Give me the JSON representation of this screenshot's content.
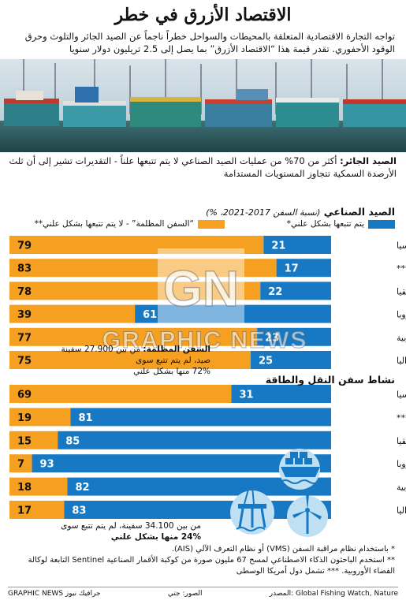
{
  "title": "الاقتصاد الأزرق في خطر",
  "subtitle": "تواجه التجارة الاقتصادية المتعلقة بالمحيطات والسواحل خطراً ناجماً عن الصيد الجائر والتلوث وحرق الوقود الأحفوري. تقدر قيمة هذا “الاقتصاد الأزرق” بما يصل إلى 2.5 تريليون دولار سنويا",
  "intro": {
    "lead": "الصيد الجائر:",
    "text": " أكثر من 70% من عمليات الصيد الصناعي لا يتم تتبعها علناً - التقديرات تشير إلى أن ثلث الأرصدة السمكية تتجاوز المستويات المستدامة"
  },
  "legend": {
    "blue": "يتم تتبعها بشكل علني*",
    "orange": "“السفن المظلمة” - لا يتم تتبعها بشكل علني**"
  },
  "colors": {
    "blue": "#1779c4",
    "orange": "#f5a021",
    "sea": "#bfe0f2",
    "icon": "#1779c4"
  },
  "chart_data": [
    {
      "type": "bar",
      "title": "الصيد الصناعي",
      "note": "(نسبة السفن 2017-2021، %)",
      "categories": [
        "آسيا",
        "أمريكا الشمالية***",
        "أفريقيا",
        "أوروبا",
        "أمريكا الجنوبية",
        "أستراليا"
      ],
      "series": [
        {
          "name": "يتم تتبعها بشكل علني*",
          "values": [
            21,
            17,
            22,
            61,
            23,
            25
          ]
        },
        {
          "name": "“السفن المظلمة” - لا يتم تتبعها بشكل علني**",
          "values": [
            79,
            83,
            78,
            39,
            77,
            75
          ]
        }
      ],
      "xlim": [
        0,
        100
      ],
      "stacked": true,
      "annotation": {
        "lead": "السفن المظلمة:",
        "line1": " من بين 27.900 سفينة صيد، لم يتم تتبع سوى",
        "line2": "72% منها بشكل علني"
      }
    },
    {
      "type": "bar",
      "title": "نشاط سفن النقل والطاقة",
      "categories": [
        "آسيا",
        "أمريكا الشمالية***",
        "أفريقيا",
        "أوروبا",
        "أمريكا الجنوبية",
        "أستراليا"
      ],
      "series": [
        {
          "name": "يتم تتبعها بشكل علني*",
          "values": [
            31,
            81,
            85,
            93,
            82,
            83
          ]
        },
        {
          "name": "“السفن المظلمة” - لا يتم تتبعها بشكل علني**",
          "values": [
            69,
            19,
            15,
            7,
            18,
            17
          ]
        }
      ],
      "xlim": [
        0,
        100
      ],
      "stacked": true,
      "annotation": {
        "line1": "من بين 34.100 سفينة، لم يتم تتبع سوى",
        "line2": "24% منها بشكل علني"
      }
    }
  ],
  "footnotes": [
    "* باستخدام نظام مراقبة السفن (VMS) أو نظام التعرف الآلي (AIS).",
    "** استخدم الباحثون الذكاء الاصطناعي لمسح 67 مليون صورة من كوكبة الأقمار الصناعية Sentinel التابعة لوكالة الفضاء الأوروبية.   *** تشمل دول أمريكا الوسطى"
  ],
  "footer": {
    "source": "المصدر: Global Fishing Watch, Nature",
    "photo": "الصور: جتي",
    "brand": "GRAPHIC NEWS جرافيك نيوز"
  },
  "watermark": "GRAPHIC NEWS"
}
